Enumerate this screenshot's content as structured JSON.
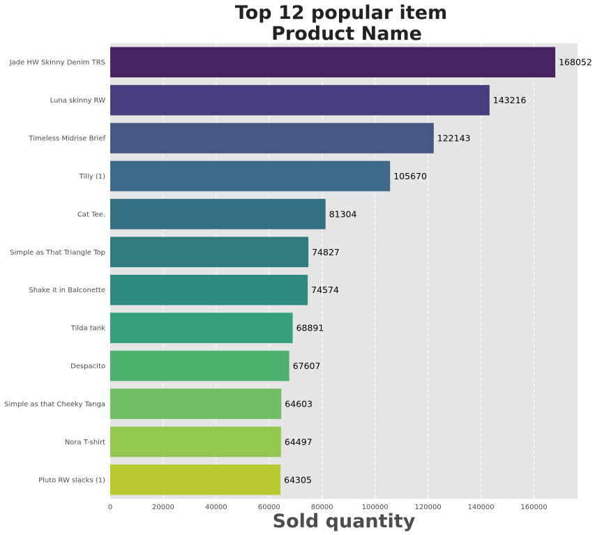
{
  "chart_data": {
    "type": "bar",
    "orientation": "horizontal",
    "title": "Top 12 popular item",
    "subtitle": "Product Name",
    "xlabel": "Sold quantity",
    "ylabel": "",
    "xlim": [
      0,
      176455
    ],
    "xticks": [
      0,
      20000,
      40000,
      60000,
      80000,
      100000,
      120000,
      140000,
      160000
    ],
    "grid": true,
    "categories": [
      "Jade HW Skinny Denim TRS",
      "Luna skinny RW",
      "Timeless Midrise Brief",
      "Tilly (1)",
      "Cat Tee.",
      "Simple as That Triangle Top",
      "Shake it in Balconette",
      "Tilda tank",
      "Despacito",
      "Simple as that Cheeky Tanga",
      "Nora T-shirt",
      "Pluto RW slacks (1)"
    ],
    "values": [
      168052,
      143216,
      122143,
      105670,
      81304,
      74827,
      74574,
      68891,
      67607,
      64603,
      64497,
      64305
    ],
    "colors": [
      "#472362",
      "#473f7d",
      "#465784",
      "#3e6a8b",
      "#376f82",
      "#317b7e",
      "#2e8b7e",
      "#35a079",
      "#4fb16f",
      "#73bd67",
      "#93c74f",
      "#b8c830"
    ],
    "background": "#e5e5e5",
    "grid_color": "#ffffff"
  }
}
